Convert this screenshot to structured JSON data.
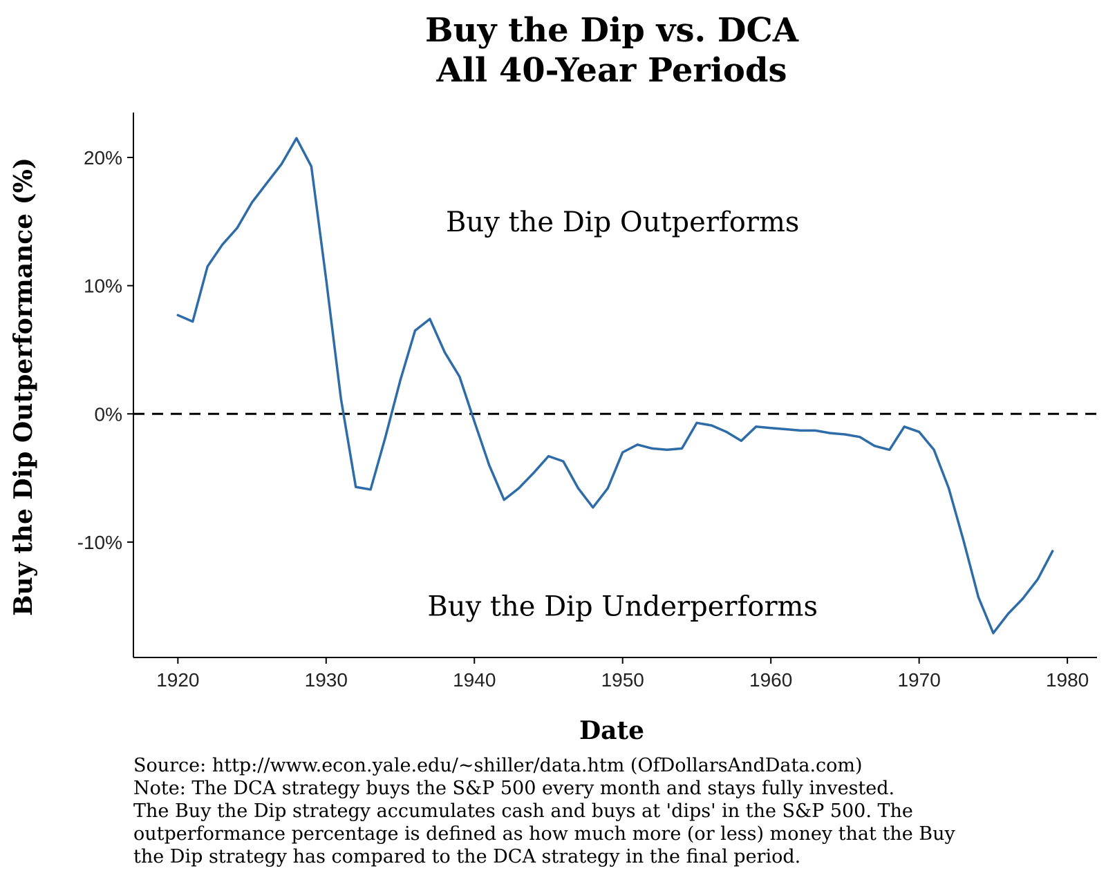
{
  "chart_data": {
    "type": "line",
    "title_lines": [
      "Buy the Dip vs. DCA",
      "All 40-Year Periods"
    ],
    "xlabel": "Date",
    "ylabel": "Buy the Dip Outperformance (%)",
    "xlim": [
      1917,
      1982
    ],
    "ylim": [
      -19,
      23.5
    ],
    "x_ticks": [
      1920,
      1930,
      1940,
      1950,
      1960,
      1970,
      1980
    ],
    "x_tick_labels": [
      "1920",
      "1930",
      "1940",
      "1950",
      "1960",
      "1970",
      "1980"
    ],
    "y_ticks": [
      20,
      10,
      0,
      -10
    ],
    "y_tick_labels": [
      "20%",
      "10%",
      "0%",
      "-10%"
    ],
    "reference_line": {
      "y": 0,
      "style": "dashed",
      "color": "#000000"
    },
    "annotations": [
      {
        "text": "Buy the Dip Outperforms",
        "x": 1950,
        "y": 15
      },
      {
        "text": "Buy the Dip Underperforms",
        "x": 1950,
        "y": -15
      }
    ],
    "series": [
      {
        "name": "Buy the Dip Outperformance",
        "color": "#2e6ca8",
        "x": [
          1920,
          1921,
          1922,
          1923,
          1924,
          1925,
          1926,
          1927,
          1928,
          1929,
          1930,
          1931,
          1932,
          1933,
          1934,
          1935,
          1936,
          1937,
          1938,
          1939,
          1940,
          1941,
          1942,
          1943,
          1944,
          1945,
          1946,
          1947,
          1948,
          1949,
          1950,
          1951,
          1952,
          1953,
          1954,
          1955,
          1956,
          1957,
          1958,
          1959,
          1960,
          1961,
          1962,
          1963,
          1964,
          1965,
          1966,
          1967,
          1968,
          1969,
          1970,
          1971,
          1972,
          1973,
          1974,
          1975,
          1976,
          1977,
          1978,
          1979
        ],
        "values": [
          7.7,
          7.2,
          11.5,
          13.2,
          14.5,
          16.5,
          18.0,
          19.5,
          21.5,
          19.3,
          10.5,
          1.2,
          -5.7,
          -5.9,
          -1.8,
          2.6,
          6.5,
          7.4,
          4.8,
          2.9,
          -0.6,
          -4.0,
          -6.7,
          -5.8,
          -4.6,
          -3.3,
          -3.7,
          -5.8,
          -7.3,
          -5.8,
          -3.0,
          -2.4,
          -2.7,
          -2.8,
          -2.7,
          -0.7,
          -0.9,
          -1.4,
          -2.1,
          -1.0,
          -1.1,
          -1.2,
          -1.3,
          -1.3,
          -1.5,
          -1.6,
          -1.8,
          -2.5,
          -2.8,
          -1.0,
          -1.4,
          -2.8,
          -5.8,
          -9.9,
          -14.3,
          -17.1,
          -15.6,
          -14.4,
          -12.9,
          -10.7
        ]
      }
    ]
  },
  "footer": {
    "lines": [
      "Source:  http://www.econ.yale.edu/~shiller/data.htm (OfDollarsAndData.com)",
      "Note: The DCA strategy buys the S&P 500 every month and stays fully invested.",
      "The Buy the Dip strategy accumulates cash and buys at 'dips' in the S&P 500. The",
      "outperformance percentage is defined as how much more (or less) money that the Buy",
      "the Dip strategy has compared to the DCA strategy in the final period."
    ]
  }
}
